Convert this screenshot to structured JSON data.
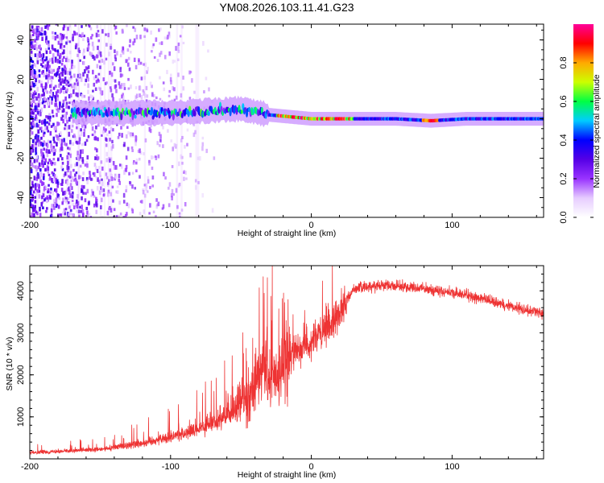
{
  "title": "YM08.2026.103.11.41.G23",
  "chart_data": [
    {
      "type": "heatmap",
      "title": "YM08.2026.103.11.41.G23",
      "xlabel": "Height of straight line (km)",
      "ylabel": "Frequency (Hz)",
      "xlim": [
        -200,
        165
      ],
      "ylim": [
        -50,
        48
      ],
      "xticks": [
        -200,
        -100,
        0,
        100
      ],
      "yticks": [
        -40,
        -20,
        0,
        20,
        40
      ],
      "colorbar": {
        "label": "Normalized spectral amplitude",
        "range": [
          0.0,
          1.0
        ],
        "ticks": [
          "0.0",
          "0.2",
          "0.4",
          "0.6",
          "0.8"
        ],
        "tick_values": [
          0.0,
          0.2,
          0.4,
          0.6,
          0.8
        ],
        "colors": [
          "#ffffff",
          "#e6ccff",
          "#9933ff",
          "#5500e6",
          "#0000ff",
          "#00ccff",
          "#00ff44",
          "#ccff00",
          "#ffaa00",
          "#ff0000",
          "#ff0099"
        ]
      },
      "features": {
        "scatter_noise_region_km": [
          -200,
          -80
        ],
        "carrier_start_km": -170,
        "carrier_center_hz": [
          {
            "x": -170,
            "y": 3
          },
          {
            "x": -100,
            "y": 3
          },
          {
            "x": -50,
            "y": 5
          },
          {
            "x": -30,
            "y": 2
          },
          {
            "x": 0,
            "y": 0
          },
          {
            "x": 60,
            "y": 0
          },
          {
            "x": 85,
            "y": -1
          },
          {
            "x": 110,
            "y": 0
          },
          {
            "x": 165,
            "y": 0
          }
        ],
        "peak_amplitude_region_km": [
          -25,
          30
        ],
        "secondary_peak_km": 85
      }
    },
    {
      "type": "line",
      "xlabel": "Height of straight line (km)",
      "ylabel": "SNR (10 * v/v)",
      "xlim": [
        -200,
        165
      ],
      "ylim": [
        0,
        4600
      ],
      "xticks": [
        -200,
        -100,
        0,
        100
      ],
      "yticks": [
        1000,
        2000,
        3000,
        4000
      ],
      "series": [
        {
          "name": "SNR",
          "color": "#ee3333",
          "envelope": [
            {
              "x": -200,
              "y": 150
            },
            {
              "x": -150,
              "y": 220
            },
            {
              "x": -120,
              "y": 380
            },
            {
              "x": -100,
              "y": 520
            },
            {
              "x": -80,
              "y": 700
            },
            {
              "x": -60,
              "y": 1000
            },
            {
              "x": -45,
              "y": 1500
            },
            {
              "x": -35,
              "y": 2000
            },
            {
              "x": -25,
              "y": 1900
            },
            {
              "x": -18,
              "y": 2300
            },
            {
              "x": -10,
              "y": 2600
            },
            {
              "x": 0,
              "y": 2800
            },
            {
              "x": 10,
              "y": 3000
            },
            {
              "x": 20,
              "y": 3500
            },
            {
              "x": 30,
              "y": 4050
            },
            {
              "x": 50,
              "y": 4150
            },
            {
              "x": 80,
              "y": 4050
            },
            {
              "x": 110,
              "y": 3900
            },
            {
              "x": 140,
              "y": 3650
            },
            {
              "x": 165,
              "y": 3450
            }
          ]
        }
      ]
    }
  ]
}
